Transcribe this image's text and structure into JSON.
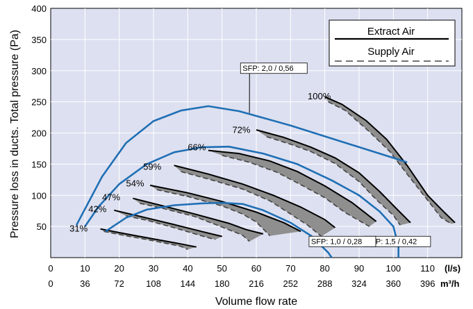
{
  "chart_data": {
    "type": "line",
    "ylabel": "Pressure loss in ducts. Total pressure (Pa)",
    "xlabel": "Volume flow rate",
    "x_unit_primary": "(l/s)",
    "x_unit_secondary": "m³/h",
    "xlim": [
      0,
      120
    ],
    "ylim": [
      0,
      400
    ],
    "grid": true,
    "x_ticks": [
      {
        "v": 0,
        "m3h": "0"
      },
      {
        "v": 10,
        "m3h": "36"
      },
      {
        "v": 20,
        "m3h": "72"
      },
      {
        "v": 30,
        "m3h": "108"
      },
      {
        "v": 40,
        "m3h": "144"
      },
      {
        "v": 50,
        "m3h": "180"
      },
      {
        "v": 60,
        "m3h": "216"
      },
      {
        "v": 70,
        "m3h": "252"
      },
      {
        "v": 80,
        "m3h": "288"
      },
      {
        "v": 90,
        "m3h": "324"
      },
      {
        "v": 100,
        "m3h": "360"
      },
      {
        "v": 110,
        "m3h": "396"
      }
    ],
    "y_ticks": [
      50,
      100,
      150,
      200,
      250,
      300,
      350,
      400
    ],
    "legend": {
      "position": "top-right",
      "entries": [
        {
          "name": "Extract Air",
          "style": "solid"
        },
        {
          "name": "Supply Air",
          "style": "dashed"
        }
      ]
    },
    "fan_curves": [
      {
        "label": "31%",
        "label_at": [
          5.5,
          42
        ],
        "extract": [
          [
            14.5,
            46
          ],
          [
            22,
            38
          ],
          [
            30,
            30
          ],
          [
            38,
            22
          ],
          [
            42.5,
            17
          ]
        ],
        "supply": [
          [
            15.5,
            42
          ],
          [
            22,
            35
          ],
          [
            30,
            27
          ],
          [
            38,
            18
          ],
          [
            40,
            13
          ]
        ]
      },
      {
        "label": "42%",
        "label_at": [
          11,
          73
        ],
        "extract": [
          [
            18.5,
            76
          ],
          [
            27,
            65
          ],
          [
            36,
            53
          ],
          [
            44,
            42
          ],
          [
            50,
            34
          ]
        ],
        "supply": [
          [
            22,
            67
          ],
          [
            28,
            60
          ],
          [
            36,
            48
          ],
          [
            44,
            35
          ],
          [
            48,
            29
          ]
        ]
      },
      {
        "label": "47%",
        "label_at": [
          15,
          92
        ],
        "extract": [
          [
            24,
            95
          ],
          [
            32,
            84
          ],
          [
            42,
            70
          ],
          [
            52,
            55
          ],
          [
            57,
            45
          ],
          [
            62,
            38
          ]
        ],
        "supply": [
          [
            26,
            87
          ],
          [
            32,
            80
          ],
          [
            42,
            66
          ],
          [
            50,
            49
          ],
          [
            56,
            36
          ],
          [
            58,
            26
          ]
        ]
      },
      {
        "label": "54%",
        "label_at": [
          22,
          114
        ],
        "extract": [
          [
            29,
            116
          ],
          [
            40,
            104
          ],
          [
            50,
            90
          ],
          [
            60,
            73
          ],
          [
            68,
            56
          ],
          [
            73,
            42
          ]
        ],
        "supply": [
          [
            31,
            109
          ],
          [
            40,
            98
          ],
          [
            50,
            83
          ],
          [
            56,
            70
          ],
          [
            60,
            57
          ],
          [
            64,
            35
          ]
        ]
      },
      {
        "label": "59%",
        "label_at": [
          27,
          141
        ],
        "extract": [
          [
            36,
            148
          ],
          [
            46,
            134
          ],
          [
            56,
            118
          ],
          [
            65,
            100
          ],
          [
            73,
            81
          ],
          [
            80,
            61
          ],
          [
            83,
            48
          ]
        ],
        "supply": [
          [
            38,
            138
          ],
          [
            48,
            123
          ],
          [
            56,
            110
          ],
          [
            64,
            91
          ],
          [
            70,
            70
          ],
          [
            75,
            52
          ],
          [
            79,
            34
          ]
        ]
      },
      {
        "label": "66%",
        "label_at": [
          40,
          172
        ],
        "extract": [
          [
            46,
            172
          ],
          [
            55,
            167
          ],
          [
            64,
            155
          ],
          [
            72,
            138
          ],
          [
            80,
            115
          ],
          [
            88,
            88
          ],
          [
            95,
            58
          ]
        ],
        "supply": [
          [
            50,
            164
          ],
          [
            58,
            153
          ],
          [
            66,
            137
          ],
          [
            73,
            117
          ],
          [
            80,
            96
          ],
          [
            86,
            72
          ],
          [
            93,
            50
          ]
        ]
      },
      {
        "label": "72%",
        "label_at": [
          53,
          200
        ],
        "extract": [
          [
            60,
            205
          ],
          [
            68,
            193
          ],
          [
            76,
            177
          ],
          [
            83,
            160
          ],
          [
            90,
            136
          ],
          [
            96,
            106
          ],
          [
            101,
            78
          ],
          [
            105,
            56
          ]
        ],
        "supply": [
          [
            63,
            194
          ],
          [
            70,
            182
          ],
          [
            76,
            170
          ],
          [
            83,
            151
          ],
          [
            90,
            122
          ],
          [
            95,
            93
          ],
          [
            100,
            68
          ],
          [
            102,
            52
          ]
        ]
      },
      {
        "label": "100%",
        "label_at": [
          75,
          254
        ],
        "extract": [
          [
            80,
            258
          ],
          [
            85,
            246
          ],
          [
            92,
            220
          ],
          [
            98,
            190
          ],
          [
            104,
            148
          ],
          [
            110,
            100
          ],
          [
            115,
            72
          ],
          [
            118,
            56
          ]
        ],
        "supply": [
          [
            81,
            250
          ],
          [
            86,
            236
          ],
          [
            93,
            202
          ],
          [
            99,
            170
          ],
          [
            104,
            134
          ],
          [
            110,
            92
          ],
          [
            114,
            64
          ],
          [
            117,
            54
          ]
        ]
      }
    ],
    "sfp_curves": [
      {
        "label": "SFP: 2,0 / 0,56",
        "label_at": [
          56,
          300
        ],
        "points": [
          [
            7.5,
            52
          ],
          [
            15,
            130
          ],
          [
            22,
            184
          ],
          [
            30,
            219
          ],
          [
            38,
            236
          ],
          [
            46,
            243
          ],
          [
            55,
            235
          ],
          [
            70,
            212
          ],
          [
            85,
            186
          ],
          [
            100,
            160
          ],
          [
            104,
            153
          ]
        ]
      },
      {
        "label": "SFP: 1,5 / 0,42",
        "label_at": [
          92,
          22
        ],
        "points": [
          [
            10,
            50
          ],
          [
            14,
            82
          ],
          [
            20,
            118
          ],
          [
            28,
            150
          ],
          [
            36,
            169
          ],
          [
            44,
            177
          ],
          [
            52,
            178
          ],
          [
            62,
            167
          ],
          [
            72,
            150
          ],
          [
            82,
            124
          ],
          [
            90,
            100
          ],
          [
            96,
            74
          ],
          [
            100,
            50
          ],
          [
            101.5,
            18
          ],
          [
            101.5,
            0
          ]
        ]
      },
      {
        "label": "SFP: 1,0 / 0,28",
        "label_at": [
          76,
          22
        ],
        "points": [
          [
            16,
            42
          ],
          [
            22,
            64
          ],
          [
            28,
            77
          ],
          [
            36,
            84
          ],
          [
            44,
            87
          ],
          [
            50,
            88
          ],
          [
            56,
            86
          ],
          [
            62,
            76
          ],
          [
            70,
            56
          ],
          [
            76,
            35
          ],
          [
            81,
            8
          ],
          [
            82,
            0
          ]
        ]
      }
    ]
  }
}
